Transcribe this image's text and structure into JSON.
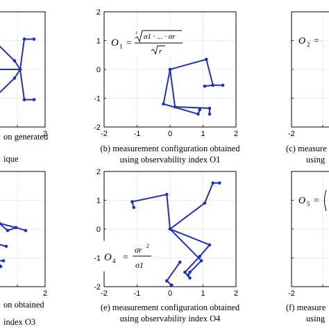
{
  "chart_data": [
    {
      "type": "line",
      "panel": "a",
      "caption_lines": [
        "on generated",
        "ique"
      ],
      "x_ticks": [
        "2"
      ],
      "y_ticks": [],
      "xlim": [
        -2,
        2
      ],
      "ylim": [
        -2,
        2
      ],
      "grid": true,
      "series": [
        {
          "points": [
            [
              0.1,
              1.05
            ],
            [
              0.9,
              0.3
            ],
            [
              1.1,
              0
            ],
            [
              0.9,
              -0.3
            ],
            [
              0.1,
              -1.05
            ]
          ]
        },
        {
          "points": [
            [
              1.25,
              1.05
            ],
            [
              1.1,
              0
            ],
            [
              1.25,
              -1.05
            ]
          ]
        },
        {
          "points": [
            [
              1.25,
              1.05
            ],
            [
              1.6,
              1.05
            ]
          ]
        },
        {
          "points": [
            [
              1.25,
              -1.05
            ],
            [
              1.6,
              -1.05
            ]
          ]
        },
        {
          "points": [
            [
              0.1,
              0
            ],
            [
              1.1,
              0
            ]
          ]
        }
      ]
    },
    {
      "type": "line",
      "panel": "b",
      "caption_lines": [
        "(b) measurement configuration obtained",
        "using observability index O1"
      ],
      "x_ticks": [
        "-2",
        "-1",
        "0",
        "1",
        "2"
      ],
      "y_ticks": [
        "2",
        "1",
        "0",
        "-1",
        "-2"
      ],
      "xlim": [
        -2,
        2
      ],
      "ylim": [
        -2,
        2
      ],
      "grid": true,
      "formula": {
        "lhs": "O1",
        "numerator": "r√(σ1 · ... · σr)",
        "denominator": "√r"
      },
      "series": [
        {
          "points": [
            [
              0,
              0
            ],
            [
              1.1,
              0.35
            ],
            [
              1.3,
              -0.55
            ],
            [
              1.6,
              -0.55
            ]
          ]
        },
        {
          "points": [
            [
              1.3,
              -0.55
            ],
            [
              1.05,
              -0.58
            ]
          ]
        },
        {
          "points": [
            [
              0,
              0
            ],
            [
              -0.2,
              -1.2
            ],
            [
              0.85,
              -1.55
            ],
            [
              0.9,
              -1.4
            ]
          ]
        },
        {
          "points": [
            [
              0,
              0
            ],
            [
              0.15,
              -1.3
            ],
            [
              1.2,
              -1.35
            ],
            [
              1.2,
              -1.55
            ]
          ]
        }
      ]
    },
    {
      "type": "line",
      "panel": "c",
      "caption_lines": [
        "(c) measure",
        "using"
      ],
      "x_ticks": [
        "-2"
      ],
      "y_ticks": [],
      "xlim": [
        -2,
        2
      ],
      "ylim": [
        -2,
        2
      ],
      "grid": true,
      "formula": {
        "lhs": "O2"
      },
      "series": []
    },
    {
      "type": "line",
      "panel": "d",
      "caption_lines": [
        "on obtained",
        "index O3"
      ],
      "x_ticks": [
        "2"
      ],
      "y_ticks": [],
      "xlim": [
        -2,
        2
      ],
      "ylim": [
        -2,
        2
      ],
      "grid": true,
      "series": [
        {
          "points": [
            [
              -0.1,
              0.6
            ],
            [
              0.35,
              0.2
            ],
            [
              0.95,
              0.05
            ],
            [
              1.3,
              -0.05
            ]
          ]
        },
        {
          "points": [
            [
              0.35,
              0.2
            ],
            [
              0.65,
              -0.05
            ],
            [
              0.95,
              0.05
            ]
          ]
        },
        {
          "points": [
            [
              0.35,
              0.2
            ],
            [
              -0.2,
              -0.4
            ],
            [
              0.6,
              -0.6
            ]
          ]
        },
        {
          "points": [
            [
              -0.1,
              -0.5
            ],
            [
              0.3,
              -1.1
            ],
            [
              0.4,
              -1.3
            ]
          ]
        },
        {
          "points": [
            [
              -0.4,
              -1.1
            ],
            [
              0.5,
              -1.1
            ]
          ]
        }
      ]
    },
    {
      "type": "line",
      "panel": "e",
      "caption_lines": [
        "(e) measurement configuration obtained",
        "using observability index O4"
      ],
      "x_ticks": [
        "-2",
        "-1",
        "0",
        "1",
        "2"
      ],
      "y_ticks": [
        "2",
        "1",
        "0",
        "-1",
        "-2"
      ],
      "xlim": [
        -2,
        2
      ],
      "ylim": [
        -2,
        2
      ],
      "grid": true,
      "formula": {
        "lhs": "O4",
        "numerator": "σr²",
        "denominator": "σ1"
      },
      "series": [
        {
          "points": [
            [
              0,
              0
            ],
            [
              -0.1,
              1.2
            ],
            [
              -1.15,
              0.95
            ],
            [
              -1.1,
              0.75
            ]
          ]
        },
        {
          "points": [
            [
              0,
              0
            ],
            [
              1.05,
              0.9
            ],
            [
              1.3,
              1.6
            ],
            [
              1.5,
              1.6
            ]
          ]
        },
        {
          "points": [
            [
              0,
              0
            ],
            [
              1.2,
              -0.55
            ],
            [
              0.9,
              -0.95
            ],
            [
              0.45,
              -1.5
            ],
            [
              0.6,
              -1.7
            ]
          ]
        },
        {
          "points": [
            [
              0,
              0
            ],
            [
              0.95,
              -1.1
            ],
            [
              0.6,
              -1.5
            ],
            [
              0.55,
              -1.6
            ]
          ]
        },
        {
          "points": [
            [
              0.3,
              -1.15
            ],
            [
              -0.1,
              -1.8
            ],
            [
              0.05,
              -1.95
            ]
          ]
        }
      ]
    },
    {
      "type": "line",
      "panel": "f",
      "caption_lines": [
        "(f) measure",
        "using"
      ],
      "x_ticks": [
        "-2"
      ],
      "y_ticks": [],
      "xlim": [
        -2,
        2
      ],
      "ylim": [
        -2,
        2
      ],
      "grid": true,
      "formula": {
        "lhs": "O5"
      },
      "series": []
    }
  ],
  "labels": {
    "b_lhs": "O",
    "b_lhs_sub": "1",
    "b_eq": "=",
    "b_num": "σ1 · ... · σr",
    "b_root_index": "r",
    "b_den": "r",
    "c_lhs": "O",
    "c_lhs_sub": "2",
    "c_eq": "=",
    "e_lhs": "O",
    "e_lhs_sub": "4",
    "e_eq": "=",
    "e_num": "σr",
    "e_num_sup": "2",
    "e_den": "σ1",
    "f_lhs": "O",
    "f_lhs_sub": "5",
    "f_eq": "="
  },
  "colors": {
    "line": "#1f2fb8",
    "grid": "#cfcfcf",
    "axis": "#000000"
  }
}
